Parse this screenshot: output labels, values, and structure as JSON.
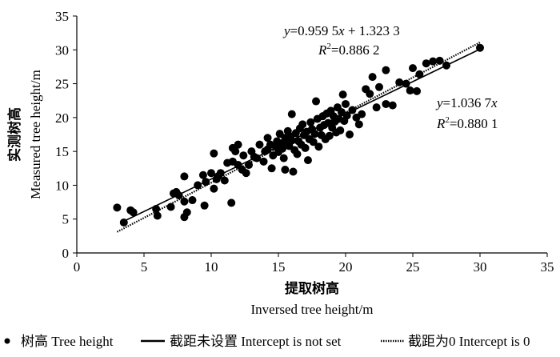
{
  "chart_data": {
    "type": "scatter",
    "xlabel_cn": "提取树高",
    "xlabel_en": "Inversed tree height/m",
    "ylabel_cn": "实测树高",
    "ylabel_en": "Measured tree height/m",
    "xlim": [
      0,
      35
    ],
    "ylim": [
      0,
      35
    ],
    "x_ticks": [
      "0",
      "5",
      "10",
      "15",
      "20",
      "25",
      "30",
      "35"
    ],
    "y_ticks": [
      "0",
      "5",
      "10",
      "15",
      "20",
      "25",
      "30",
      "35"
    ],
    "grid": false,
    "legend_position": "bottom",
    "legend": {
      "points": "树高 Tree height",
      "fit_free": "截距未设置 Intercept is not set",
      "fit_zero": "截距为0 Intercept is 0"
    },
    "annotations": {
      "fit_free_eq_y": "y",
      "fit_free_eq_mid": "=0.959 5",
      "fit_free_eq_x": "x",
      "fit_free_eq_rest": " + 1.323 3",
      "fit_free_r2_lhs": "R",
      "fit_free_r2_sup": "2",
      "fit_free_r2_rhs": "=0.886 2",
      "fit_zero_eq_y": "y",
      "fit_zero_eq_mid": "=1.036 7",
      "fit_zero_eq_x": "x",
      "fit_zero_r2_lhs": "R",
      "fit_zero_r2_sup": "2",
      "fit_zero_r2_rhs": "=0.880 1"
    },
    "fit_lines": [
      {
        "key": "fit_free",
        "slope": 0.9595,
        "intercept": 1.3233,
        "x_range": [
          3.5,
          30
        ],
        "style": "solid"
      },
      {
        "key": "fit_zero",
        "slope": 1.0367,
        "intercept": 0,
        "x_range": [
          3,
          30
        ],
        "style": "dotted"
      }
    ],
    "points": [
      [
        3.0,
        6.7
      ],
      [
        3.5,
        4.5
      ],
      [
        4.0,
        6.3
      ],
      [
        4.2,
        6.0
      ],
      [
        5.9,
        6.5
      ],
      [
        6.0,
        5.5
      ],
      [
        7.0,
        6.8
      ],
      [
        7.2,
        8.8
      ],
      [
        7.4,
        9.0
      ],
      [
        7.6,
        8.5
      ],
      [
        8.0,
        11.3
      ],
      [
        8.0,
        5.3
      ],
      [
        8.0,
        7.6
      ],
      [
        8.2,
        6.0
      ],
      [
        8.6,
        7.8
      ],
      [
        9.0,
        10.0
      ],
      [
        9.4,
        11.5
      ],
      [
        9.5,
        7.0
      ],
      [
        9.6,
        10.5
      ],
      [
        10.0,
        11.8
      ],
      [
        10.2,
        9.5
      ],
      [
        10.4,
        10.9
      ],
      [
        10.5,
        11.3
      ],
      [
        10.2,
        14.7
      ],
      [
        10.7,
        11.8
      ],
      [
        11.0,
        10.7
      ],
      [
        11.5,
        7.4
      ],
      [
        11.2,
        13.3
      ],
      [
        11.6,
        13.5
      ],
      [
        11.6,
        15.5
      ],
      [
        11.8,
        15.0
      ],
      [
        12.0,
        16.0
      ],
      [
        12.0,
        13.0
      ],
      [
        12.3,
        12.3
      ],
      [
        12.6,
        11.8
      ],
      [
        12.4,
        14.4
      ],
      [
        12.8,
        13.0
      ],
      [
        13.0,
        15.0
      ],
      [
        13.2,
        14.2
      ],
      [
        13.4,
        14.0
      ],
      [
        13.6,
        16.0
      ],
      [
        13.9,
        13.5
      ],
      [
        14.0,
        15.0
      ],
      [
        14.2,
        15.3
      ],
      [
        14.2,
        17.0
      ],
      [
        14.4,
        16.0
      ],
      [
        14.5,
        12.5
      ],
      [
        14.6,
        14.4
      ],
      [
        14.8,
        15.7
      ],
      [
        14.9,
        16.5
      ],
      [
        15.0,
        14.9
      ],
      [
        15.1,
        17.6
      ],
      [
        15.3,
        16.2
      ],
      [
        15.3,
        15.4
      ],
      [
        15.4,
        14.0
      ],
      [
        15.5,
        17.0
      ],
      [
        15.5,
        12.3
      ],
      [
        15.6,
        16.4
      ],
      [
        15.7,
        18.0
      ],
      [
        15.8,
        15.8
      ],
      [
        15.9,
        17.2
      ],
      [
        16.0,
        20.5
      ],
      [
        16.0,
        16.6
      ],
      [
        16.1,
        12.0
      ],
      [
        16.2,
        15.2
      ],
      [
        16.3,
        17.7
      ],
      [
        16.4,
        14.6
      ],
      [
        16.5,
        16.5
      ],
      [
        16.6,
        18.4
      ],
      [
        16.7,
        16.0
      ],
      [
        16.8,
        19.0
      ],
      [
        16.9,
        17.4
      ],
      [
        17.0,
        15.5
      ],
      [
        17.1,
        17.9
      ],
      [
        17.2,
        13.7
      ],
      [
        17.3,
        16.8
      ],
      [
        17.4,
        19.3
      ],
      [
        17.5,
        18.3
      ],
      [
        17.6,
        16.4
      ],
      [
        17.7,
        17.6
      ],
      [
        17.8,
        22.4
      ],
      [
        17.9,
        19.8
      ],
      [
        18.0,
        15.7
      ],
      [
        18.1,
        18.5
      ],
      [
        18.2,
        17.4
      ],
      [
        18.3,
        20.2
      ],
      [
        18.4,
        18.9
      ],
      [
        18.5,
        16.8
      ],
      [
        18.6,
        20.6
      ],
      [
        18.7,
        19.2
      ],
      [
        18.8,
        17.3
      ],
      [
        18.9,
        21.0
      ],
      [
        19.0,
        18.5
      ],
      [
        19.1,
        20.2
      ],
      [
        19.2,
        19.4
      ],
      [
        19.3,
        17.8
      ],
      [
        19.4,
        21.5
      ],
      [
        19.5,
        19.8
      ],
      [
        19.6,
        18.1
      ],
      [
        19.7,
        20.8
      ],
      [
        19.8,
        23.4
      ],
      [
        19.9,
        19.5
      ],
      [
        20.0,
        22.0
      ],
      [
        20.1,
        20.3
      ],
      [
        20.3,
        17.5
      ],
      [
        20.5,
        21.1
      ],
      [
        20.8,
        20.0
      ],
      [
        21.0,
        19.0
      ],
      [
        21.2,
        20.5
      ],
      [
        21.5,
        24.2
      ],
      [
        21.8,
        23.5
      ],
      [
        22.0,
        26.0
      ],
      [
        22.3,
        21.5
      ],
      [
        22.5,
        24.5
      ],
      [
        23.0,
        22.0
      ],
      [
        23.0,
        27.0
      ],
      [
        23.5,
        21.8
      ],
      [
        24.0,
        25.2
      ],
      [
        24.5,
        25.0
      ],
      [
        24.8,
        24.0
      ],
      [
        25.0,
        27.3
      ],
      [
        25.3,
        23.9
      ],
      [
        25.5,
        26.4
      ],
      [
        26.0,
        28.0
      ],
      [
        26.5,
        28.3
      ],
      [
        27.0,
        28.4
      ],
      [
        27.5,
        27.7
      ],
      [
        30.0,
        30.3
      ]
    ]
  }
}
